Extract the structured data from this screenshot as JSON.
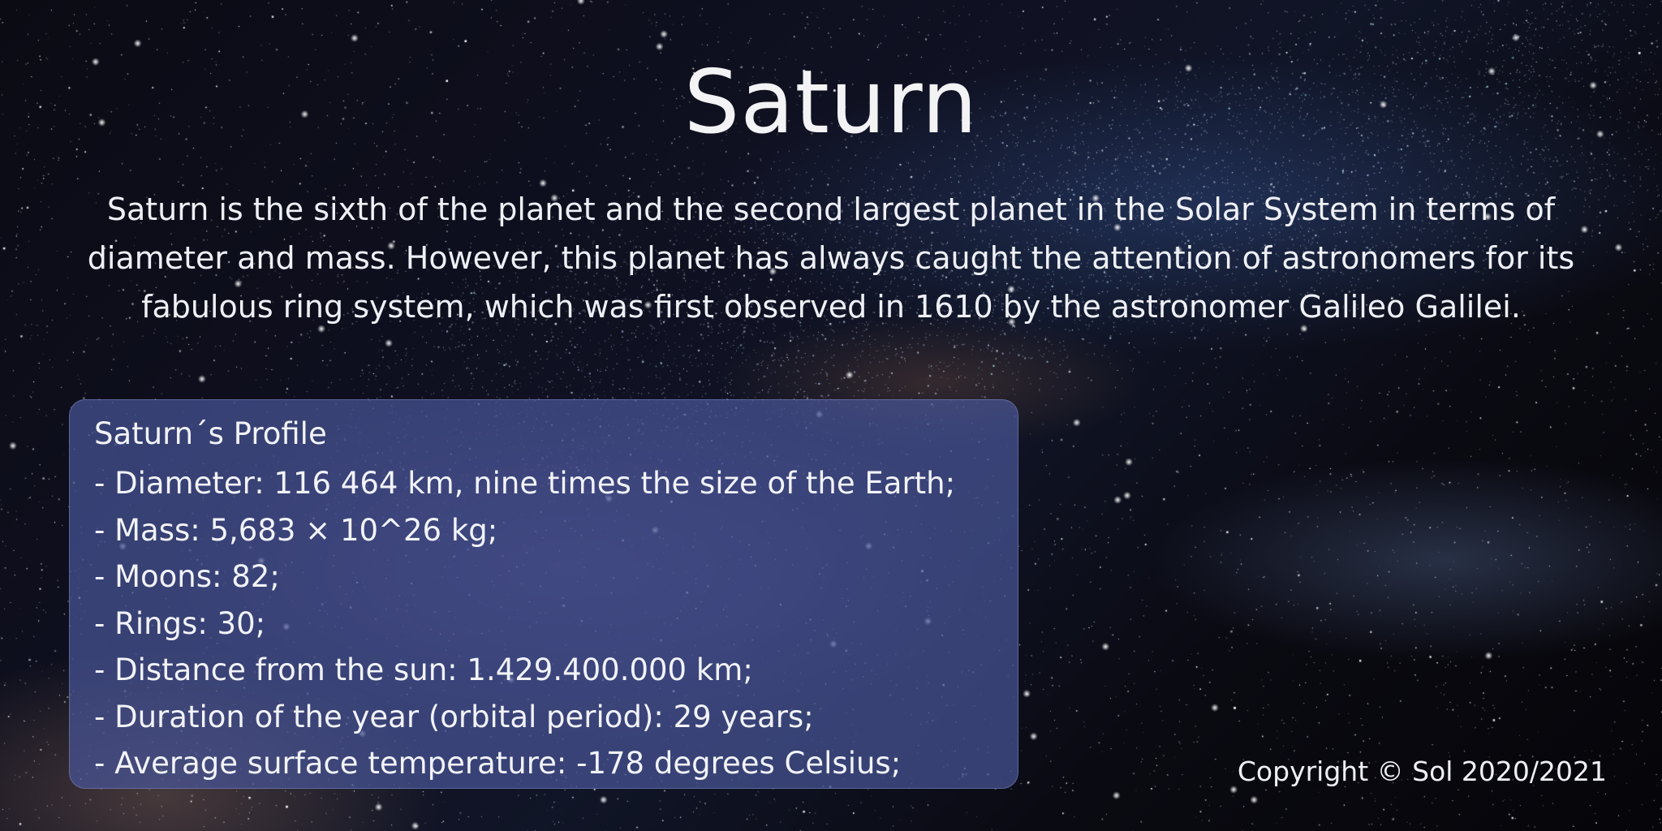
{
  "page": {
    "title": "Saturn",
    "intro": "Saturn is the sixth of the planet and the second largest planet in the Solar System in terms of diameter and mass. However, this planet has always caught the attention of astronomers for its fabulous ring system, which was first observed in 1610 by the astronomer Galileo Galilei.",
    "background": "starry night sky with milky way",
    "colors": {
      "text": "#f2f3f8",
      "card": "#4854a0"
    }
  },
  "profile": {
    "heading": "Saturn´s Profile",
    "items": [
      "- Diameter: 116 464 km, nine times the size of the Earth;",
      "- Mass: 5,683 × 10^26 kg;",
      "- Moons: 82;",
      "- Rings: 30;",
      "- Distance from the sun: 1.429.400.000 km;",
      "- Duration of the year (orbital period): 29 years;",
      "- Average surface temperature: -178 degrees Celsius;"
    ]
  },
  "footer": {
    "copyright": "Copyright © Sol 2020/2021"
  }
}
